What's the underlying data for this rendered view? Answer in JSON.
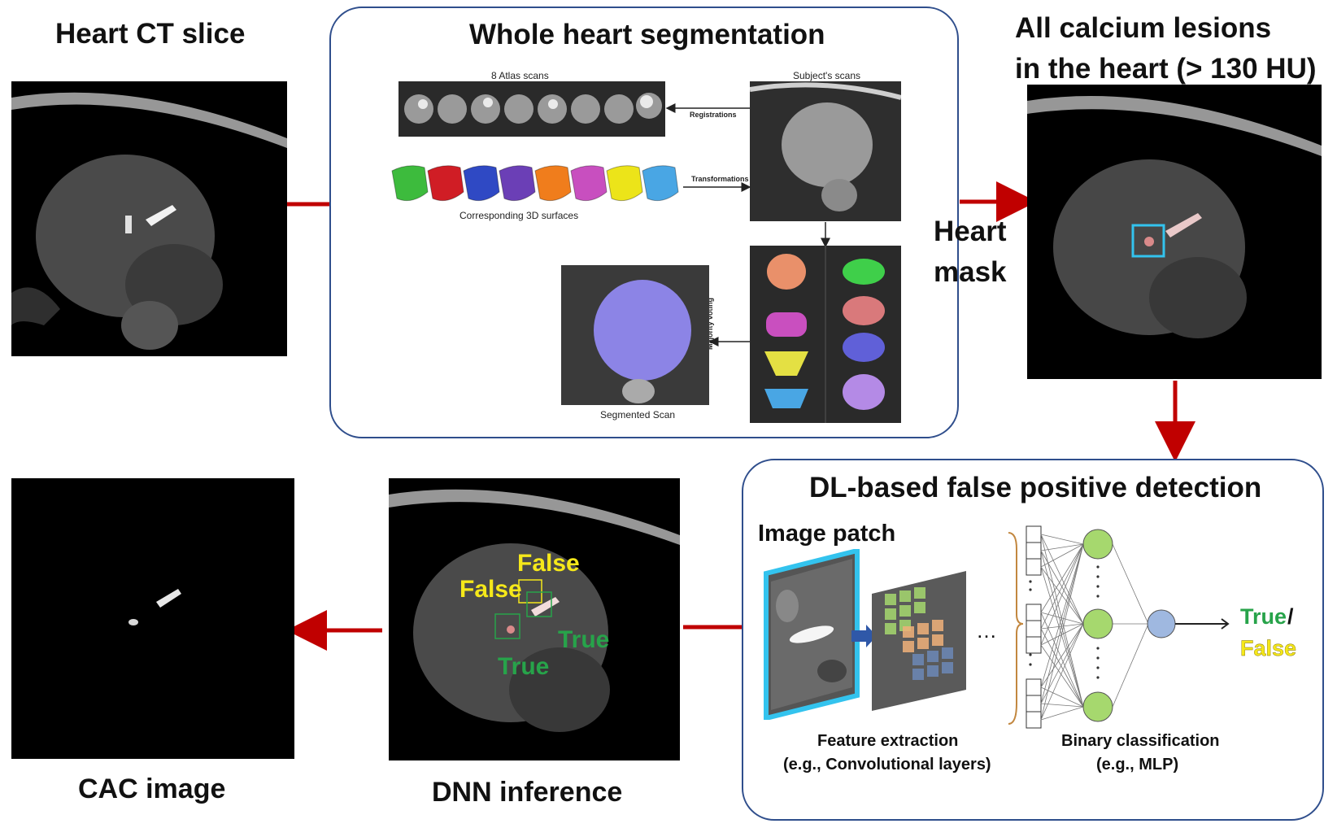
{
  "titles": {
    "heart_ct": "Heart CT slice",
    "whole_heart": "Whole heart segmentation",
    "all_calcium_line1": "All calcium lesions",
    "all_calcium_line2": "in the heart (> 130 HU)",
    "heart_mask_line1": "Heart",
    "heart_mask_line2": "mask",
    "dl_fp": "DL-based false positive detection",
    "cac_image": "CAC image",
    "dnn_inference": "DNN inference"
  },
  "segmentation": {
    "atlas_scans": "8 Atlas scans",
    "subject_scans": "Subject's scans",
    "registrations": "Registrations",
    "transformations": "Transformations",
    "corresponding_surfaces": "Corresponding 3D surfaces",
    "majority_voting": "Majority voting",
    "segmented_scan": "Segmented Scan",
    "surface_colors": [
      "#3dbb3d",
      "#d01d25",
      "#2f49c4",
      "#6b3fb6",
      "#f07d1c",
      "#c84fbf",
      "#ece419",
      "#49a6e4"
    ]
  },
  "dl": {
    "image_patch": "Image patch",
    "feature_extraction": "Feature extraction",
    "feature_extraction_eg": "(e.g., Convolutional layers)",
    "binary_classification": "Binary classification",
    "binary_classification_eg": "(e.g., MLP)",
    "ellipsis": "…",
    "output_true": "True",
    "output_false": "False"
  },
  "dnn_labels": {
    "false_1": "False",
    "false_2": "False",
    "true_1": "True",
    "true_2": "True"
  },
  "colors": {
    "arrow_red": "#c00000",
    "panel_border": "#2f4e8c",
    "true_green": "#27a34a",
    "false_yellow": "#f5e81a",
    "patch_cyan": "#33c3ee",
    "node_green": "#a6d86e",
    "node_blue": "#9fb8e0"
  }
}
